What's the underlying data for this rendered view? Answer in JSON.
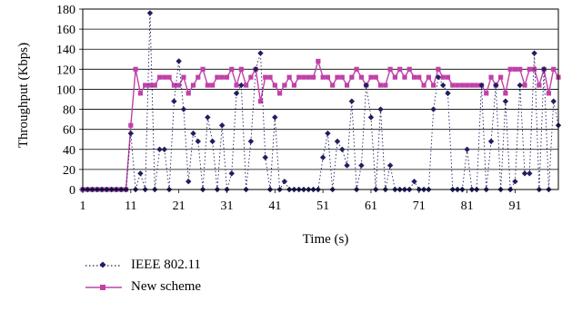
{
  "chart_data": {
    "type": "line",
    "xlabel": "Time (s)",
    "ylabel": "Throughput (Kbps)",
    "xlim": [
      1,
      100
    ],
    "ylim": [
      0,
      180
    ],
    "x_ticks": [
      "1",
      "11",
      "21",
      "31",
      "41",
      "51",
      "61",
      "71",
      "81",
      "91"
    ],
    "y_ticks": [
      "0",
      "20",
      "40",
      "60",
      "80",
      "100",
      "120",
      "140",
      "160",
      "180"
    ],
    "grid": "horizontal",
    "legend_position": "bottom-left",
    "series": [
      {
        "name": "IEEE 802.11",
        "color": "#1f1f5f",
        "marker": "diamond",
        "line": "dotted",
        "x": [
          1,
          2,
          3,
          4,
          5,
          6,
          7,
          8,
          9,
          10,
          11,
          12,
          13,
          14,
          15,
          16,
          17,
          18,
          19,
          20,
          21,
          22,
          23,
          24,
          25,
          26,
          27,
          28,
          29,
          30,
          31,
          32,
          33,
          34,
          35,
          36,
          37,
          38,
          39,
          40,
          41,
          42,
          43,
          44,
          45,
          46,
          47,
          48,
          49,
          50,
          51,
          52,
          53,
          54,
          55,
          56,
          57,
          58,
          59,
          60,
          61,
          62,
          63,
          64,
          65,
          66,
          67,
          68,
          69,
          70,
          71,
          72,
          73,
          74,
          75,
          76,
          77,
          78,
          79,
          80,
          81,
          82,
          83,
          84,
          85,
          86,
          87,
          88,
          89,
          90,
          91,
          92,
          93,
          94,
          95,
          96,
          97,
          98,
          99,
          100
        ],
        "values": [
          0,
          0,
          0,
          0,
          0,
          0,
          0,
          0,
          0,
          0,
          56,
          0,
          16,
          0,
          176,
          0,
          40,
          40,
          0,
          88,
          128,
          80,
          8,
          56,
          48,
          0,
          72,
          48,
          0,
          64,
          0,
          16,
          96,
          104,
          0,
          48,
          120,
          136,
          32,
          0,
          72,
          0,
          8,
          0,
          0,
          0,
          0,
          0,
          0,
          0,
          32,
          56,
          0,
          48,
          40,
          24,
          88,
          0,
          24,
          104,
          72,
          0,
          80,
          0,
          24,
          0,
          0,
          0,
          0,
          8,
          0,
          0,
          0,
          80,
          112,
          104,
          96,
          0,
          0,
          0,
          40,
          0,
          0,
          104,
          0,
          48,
          104,
          0,
          88,
          0,
          8,
          104,
          16,
          16,
          136,
          0,
          120,
          0,
          88,
          64
        ]
      },
      {
        "name": "New scheme",
        "color": "#c040a8",
        "marker": "square",
        "line": "solid",
        "x": [
          1,
          2,
          3,
          4,
          5,
          6,
          7,
          8,
          9,
          10,
          11,
          12,
          13,
          14,
          15,
          16,
          17,
          18,
          19,
          20,
          21,
          22,
          23,
          24,
          25,
          26,
          27,
          28,
          29,
          30,
          31,
          32,
          33,
          34,
          35,
          36,
          37,
          38,
          39,
          40,
          41,
          42,
          43,
          44,
          45,
          46,
          47,
          48,
          49,
          50,
          51,
          52,
          53,
          54,
          55,
          56,
          57,
          58,
          59,
          60,
          61,
          62,
          63,
          64,
          65,
          66,
          67,
          68,
          69,
          70,
          71,
          72,
          73,
          74,
          75,
          76,
          77,
          78,
          79,
          80,
          81,
          82,
          83,
          84,
          85,
          86,
          87,
          88,
          89,
          90,
          91,
          92,
          93,
          94,
          95,
          96,
          97,
          98,
          99,
          100
        ],
        "values": [
          0,
          0,
          0,
          0,
          0,
          0,
          0,
          0,
          0,
          0,
          64,
          120,
          96,
          104,
          104,
          104,
          112,
          112,
          112,
          104,
          104,
          112,
          96,
          104,
          112,
          120,
          104,
          104,
          112,
          112,
          112,
          120,
          104,
          120,
          104,
          112,
          120,
          88,
          112,
          112,
          104,
          96,
          104,
          112,
          104,
          112,
          112,
          112,
          112,
          128,
          112,
          112,
          104,
          112,
          112,
          104,
          112,
          120,
          112,
          104,
          112,
          112,
          104,
          104,
          120,
          112,
          120,
          112,
          120,
          112,
          112,
          104,
          112,
          104,
          120,
          112,
          112,
          104,
          104,
          104,
          104,
          104,
          104,
          104,
          96,
          112,
          104,
          112,
          96,
          120,
          120,
          120,
          104,
          120,
          120,
          104,
          120,
          96,
          120,
          112
        ]
      }
    ]
  }
}
